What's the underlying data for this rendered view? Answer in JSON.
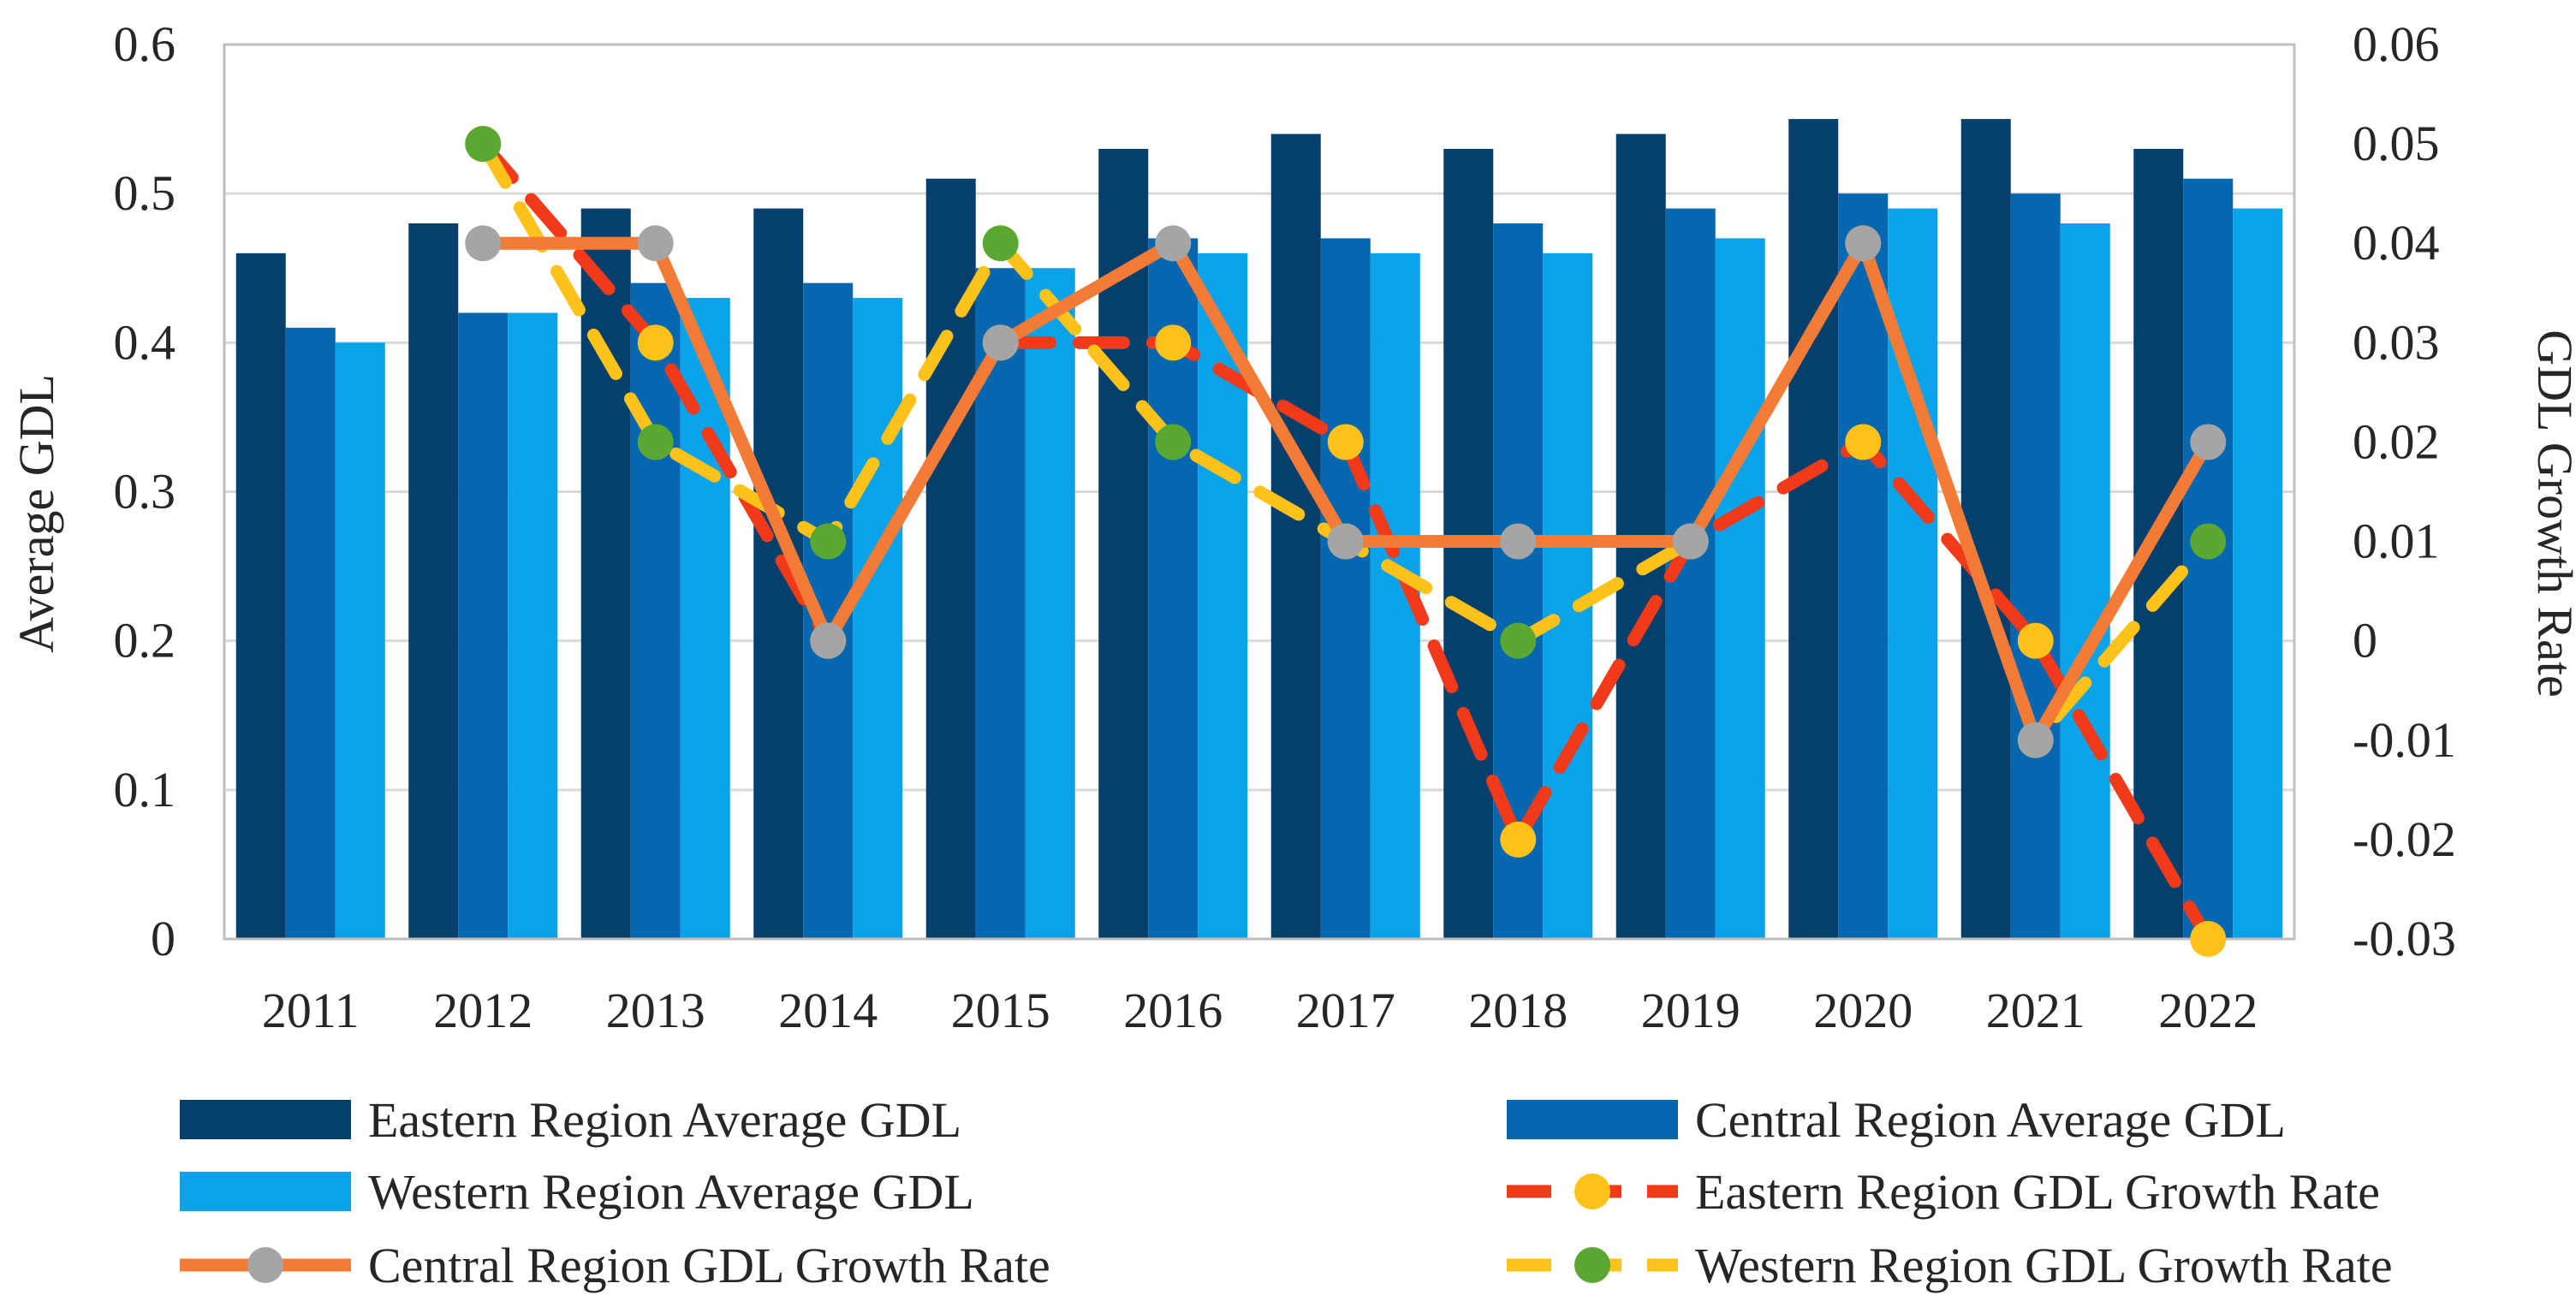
{
  "chart_data": {
    "type": "bar",
    "categories": [
      "2011",
      "2012",
      "2013",
      "2014",
      "2015",
      "2016",
      "2017",
      "2018",
      "2019",
      "2020",
      "2021",
      "2022"
    ],
    "ylabel": "Average GDL",
    "y2label": "GDL Growth Rate",
    "ylim": [
      0,
      0.6
    ],
    "yticks": [
      0,
      0.1,
      0.2,
      0.3,
      0.4,
      0.5,
      0.6
    ],
    "ytick_labels": [
      "0",
      "0.1",
      "0.2",
      "0.3",
      "0.4",
      "0.5",
      "0.6"
    ],
    "y2lim": [
      -0.03,
      0.06
    ],
    "y2ticks": [
      -0.03,
      -0.02,
      -0.01,
      0,
      0.01,
      0.02,
      0.03,
      0.04,
      0.05,
      0.06
    ],
    "y2tick_labels": [
      "-0.03",
      "-0.02",
      "-0.01",
      "0",
      "0.01",
      "0.02",
      "0.03",
      "0.04",
      "0.05",
      "0.06"
    ],
    "grid": true,
    "legend_position": "bottom",
    "bar_series": [
      {
        "name": "Eastern Region Average GDL",
        "color": "#053F6B",
        "values": [
          0.46,
          0.48,
          0.49,
          0.49,
          0.51,
          0.53,
          0.54,
          0.53,
          0.54,
          0.55,
          0.55,
          0.53
        ]
      },
      {
        "name": "Central Region Average GDL",
        "color": "#0467B0",
        "values": [
          0.41,
          0.42,
          0.44,
          0.44,
          0.45,
          0.47,
          0.47,
          0.48,
          0.49,
          0.5,
          0.5,
          0.51
        ]
      },
      {
        "name": "Western Region Average GDL",
        "color": "#0AA2E8",
        "values": [
          0.4,
          0.42,
          0.43,
          0.43,
          0.45,
          0.46,
          0.46,
          0.46,
          0.47,
          0.49,
          0.48,
          0.49
        ]
      }
    ],
    "line_series": [
      {
        "name": "Eastern Region GDL Growth Rate",
        "axis": "right",
        "line_color": "#F03A1A",
        "marker_color": "#FFC21A",
        "dash": "dashed",
        "values": [
          null,
          0.05,
          0.03,
          0.0,
          0.03,
          0.03,
          0.02,
          -0.02,
          0.01,
          0.02,
          0.0,
          -0.03
        ]
      },
      {
        "name": "Central Region GDL Growth Rate",
        "axis": "right",
        "line_color": "#F47B35",
        "marker_color": "#A5A5A5",
        "dash": "solid",
        "values": [
          null,
          0.04,
          0.04,
          0.0,
          0.03,
          0.04,
          0.01,
          0.01,
          0.01,
          0.04,
          -0.01,
          0.02
        ]
      },
      {
        "name": "Western Region GDL Growth Rate",
        "axis": "right",
        "line_color": "#FFC21A",
        "marker_color": "#5AA832",
        "dash": "dashed",
        "values": [
          null,
          0.05,
          0.02,
          0.01,
          0.04,
          0.02,
          0.01,
          0.0,
          0.01,
          0.04,
          -0.01,
          0.01
        ]
      }
    ]
  }
}
